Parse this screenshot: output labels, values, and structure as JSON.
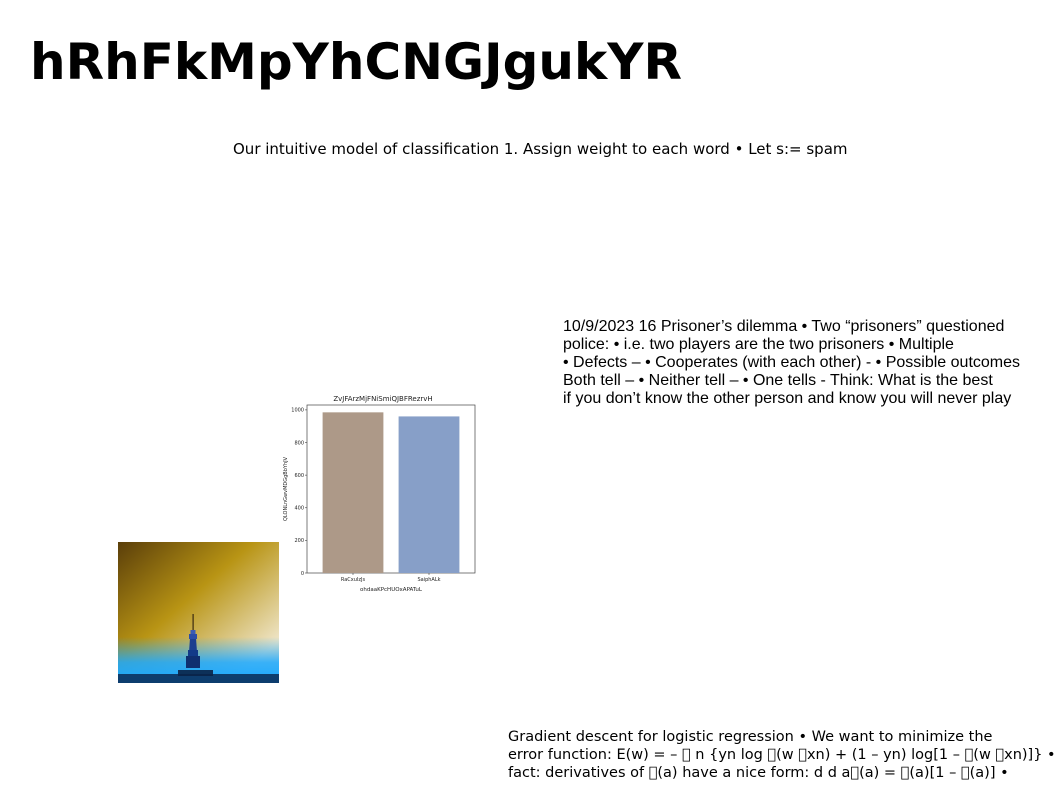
{
  "page": {
    "title": "hRhFkMpYhCNGJgukYR",
    "subtitle": "Our intuitive model of classification 1. Assign weight to each word • Let s:= spam"
  },
  "text_block_1": {
    "lines": [
      "10/9/2023 16 Prisoner’s dilemma • Two “prisoners” questioned",
      "police: • i.e. two players are the two prisoners • Multiple",
      "• Defects – • Cooperates (with each other) - • Possible outcomes",
      "Both tell – • Neither tell – • One tells - Think: What is the best",
      "if you don’t know the other person and know you will never play"
    ]
  },
  "text_block_2": {
    "lines": [
      "Gradient descent for logistic regression • We want to minimize the",
      "error function: E(w) = – ￿ n {yn log ￿(w ￿xn) + (1 – yn) log[1 – ￿(w ￿xn)]} •",
      "fact: derivatives of ￿(a) have a nice form: d d a￿(a) = ￿(a)[1 – ￿(a)] •"
    ]
  },
  "chart_data": {
    "type": "bar",
    "title": "ZvJFArzMjFNiSmiQJBFRezrvH",
    "xlabel": "ohdaaKPcHUOxAPATuL",
    "ylabel": "QLONLnGwvMDGgBbYhJV",
    "categories": [
      "RaCxuIzJs",
      "SaiphALk"
    ],
    "values": [
      985,
      960
    ],
    "colors": [
      "#ad9988",
      "#879fc8"
    ],
    "yticks": [
      0,
      200,
      400,
      600,
      800,
      1000
    ],
    "ylim": [
      0,
      1030
    ],
    "grid": false
  },
  "photo": {
    "colors": {
      "sky_top": "#5a3e0a",
      "sky_mid": "#b89414",
      "sky_light": "#efe5c8",
      "glow": "#1aa8ff",
      "tower": "#1c3f8f"
    }
  }
}
